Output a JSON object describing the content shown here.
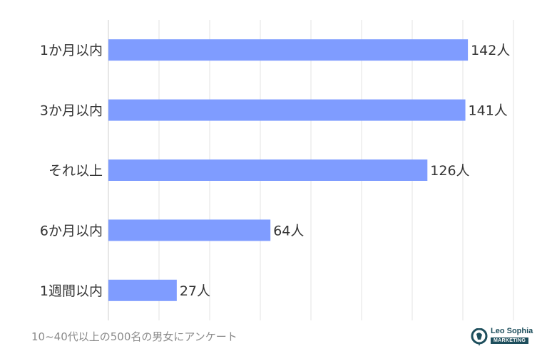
{
  "chart_data": {
    "type": "bar",
    "orientation": "horizontal",
    "categories": [
      "1か月以内",
      "3か月以内",
      "それ以上",
      "6か月以内",
      "1週間以内"
    ],
    "values": [
      142,
      141,
      126,
      64,
      27
    ],
    "value_labels": [
      "142人",
      "141人",
      "126人",
      "64人",
      "27人"
    ],
    "value_unit": "人",
    "xlim": [
      0,
      160
    ],
    "grid": true,
    "bar_color": "#7f9cff"
  },
  "caption": "10~40代以上の500名の男女にアンケート",
  "logo": {
    "name": "Leo Sophia",
    "tag": "MARKETING",
    "color": "#1d4e5c"
  }
}
